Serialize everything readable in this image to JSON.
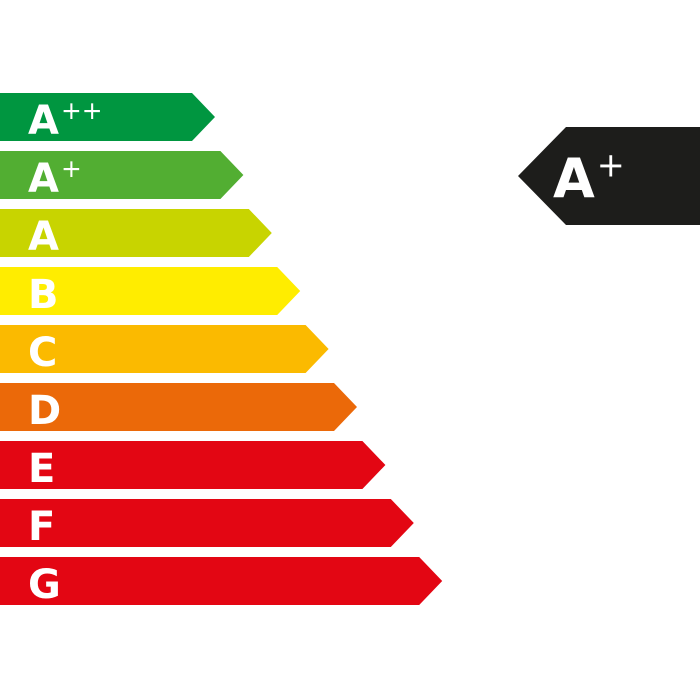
{
  "scale": {
    "classes": [
      {
        "letter": "A",
        "sup": "++",
        "color": "#009640"
      },
      {
        "letter": "A",
        "sup": "+",
        "color": "#52ae32"
      },
      {
        "letter": "A",
        "sup": "",
        "color": "#c8d400"
      },
      {
        "letter": "B",
        "sup": "",
        "color": "#ffed00"
      },
      {
        "letter": "C",
        "sup": "",
        "color": "#fbba00"
      },
      {
        "letter": "D",
        "sup": "",
        "color": "#eb6909"
      },
      {
        "letter": "E",
        "sup": "",
        "color": "#e30613"
      },
      {
        "letter": "F",
        "sup": "",
        "color": "#e30613"
      },
      {
        "letter": "G",
        "sup": "",
        "color": "#e30613"
      }
    ]
  },
  "rating": {
    "letter": "A",
    "sup": "+",
    "color": "#1d1d1b"
  }
}
